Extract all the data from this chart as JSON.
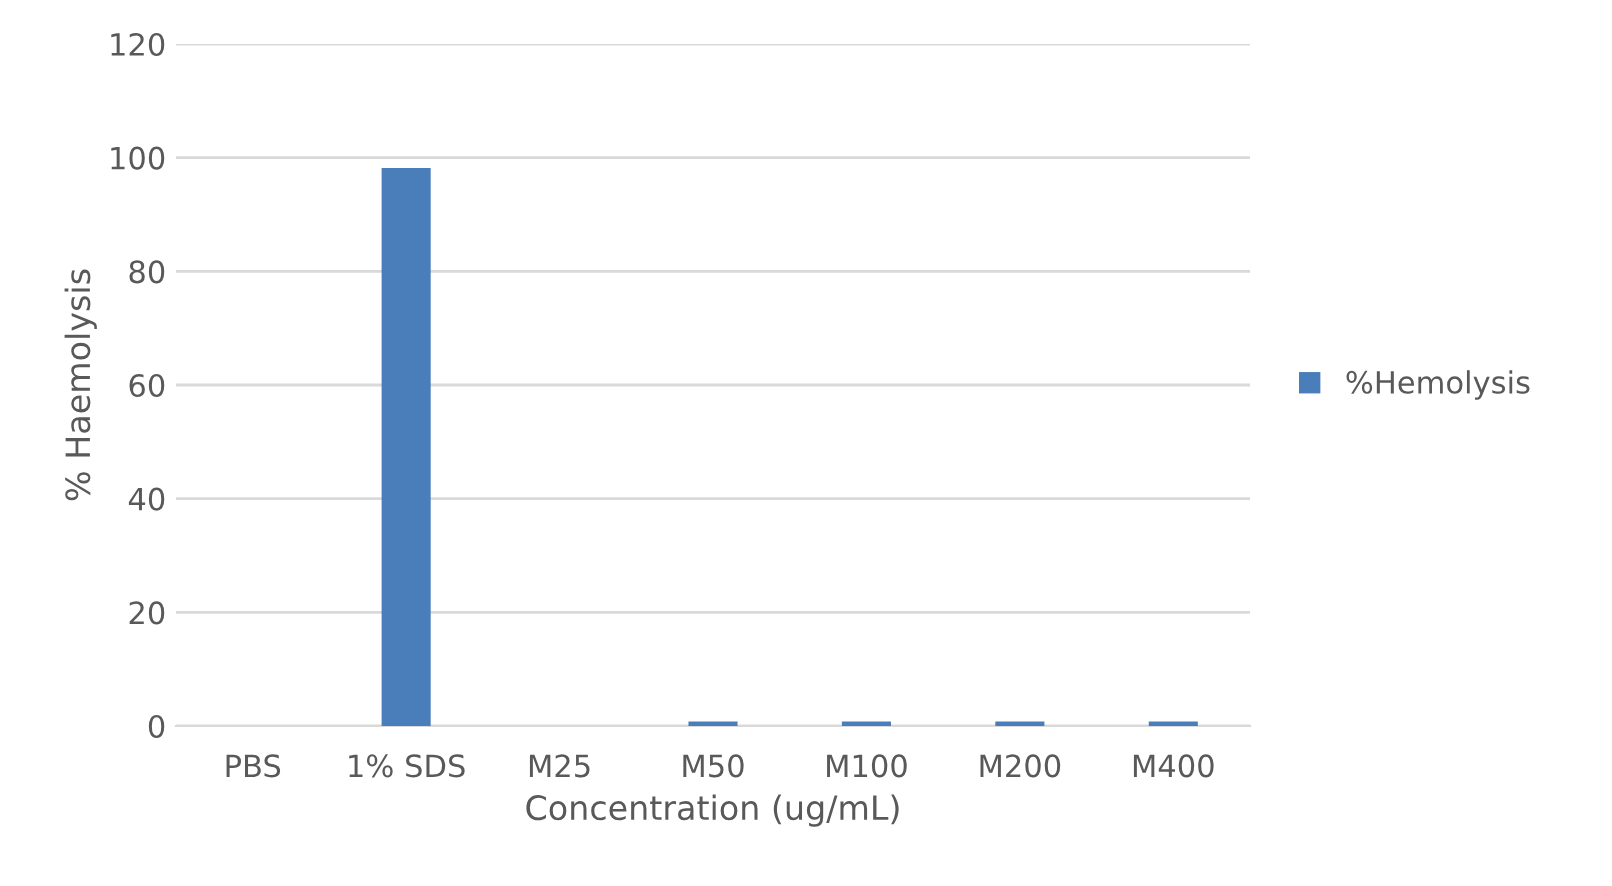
{
  "chart_data": {
    "type": "bar",
    "xlabel": "Concentration (ug/mL)",
    "ylabel": "% Haemolysis",
    "categories": [
      "PBS",
      "1% SDS",
      "M25",
      "M50",
      "M100",
      "M200",
      "M400"
    ],
    "series": [
      {
        "name": "%Hemolysis",
        "color": "#4a7ebb",
        "values": [
          0,
          98.2,
          0,
          0.8,
          0.8,
          0.8,
          0.8
        ]
      }
    ],
    "ylim": [
      0,
      120
    ],
    "yticks": [
      0,
      20,
      40,
      60,
      80,
      100,
      120
    ],
    "grid": "y",
    "legend": "right"
  }
}
